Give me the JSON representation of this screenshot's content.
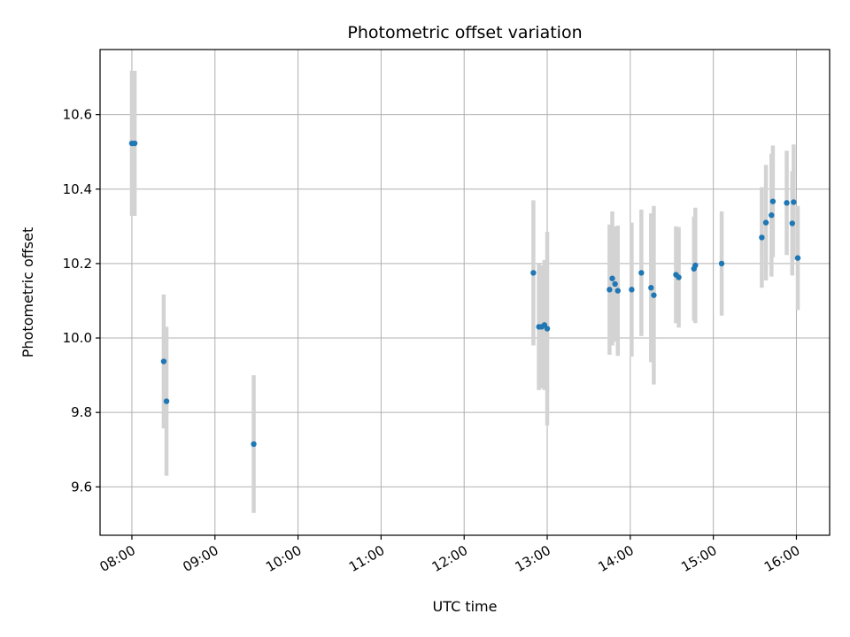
{
  "chart_data": {
    "type": "scatter",
    "title": "Photometric offset variation",
    "xlabel": "UTC time",
    "ylabel": "Photometric offset",
    "grid": true,
    "xlim": [
      "07:37",
      "16:24"
    ],
    "ylim": [
      9.47,
      10.775
    ],
    "x_ticks": [
      "08:00",
      "09:00",
      "10:00",
      "11:00",
      "12:00",
      "13:00",
      "14:00",
      "15:00",
      "16:00"
    ],
    "y_ticks": [
      9.6,
      9.8,
      10.0,
      10.2,
      10.4,
      10.6
    ],
    "colors": {
      "points": "#1f77b4",
      "errorbars": "#d3d3d3",
      "grid": "#b0b0b0"
    },
    "points": [
      {
        "x": "08:00",
        "y": 10.523,
        "err": 0.195
      },
      {
        "x": "08:02",
        "y": 10.523,
        "err": 0.195
      },
      {
        "x": "08:23",
        "y": 9.937,
        "err": 0.18
      },
      {
        "x": "08:25",
        "y": 9.83,
        "err": 0.2
      },
      {
        "x": "09:28",
        "y": 9.715,
        "err": 0.185
      },
      {
        "x": "12:50",
        "y": 10.175,
        "err": 0.195
      },
      {
        "x": "12:54",
        "y": 10.03,
        "err": 0.17
      },
      {
        "x": "12:56",
        "y": 10.03,
        "err": 0.165
      },
      {
        "x": "12:58",
        "y": 10.035,
        "err": 0.175
      },
      {
        "x": "13:00",
        "y": 10.025,
        "err": 0.26
      },
      {
        "x": "13:45",
        "y": 10.13,
        "err": 0.175
      },
      {
        "x": "13:47",
        "y": 10.16,
        "err": 0.18
      },
      {
        "x": "13:49",
        "y": 10.145,
        "err": 0.155
      },
      {
        "x": "13:51",
        "y": 10.127,
        "err": 0.175
      },
      {
        "x": "14:01",
        "y": 10.13,
        "err": 0.18
      },
      {
        "x": "14:08",
        "y": 10.175,
        "err": 0.17
      },
      {
        "x": "14:15",
        "y": 10.135,
        "err": 0.2
      },
      {
        "x": "14:17",
        "y": 10.115,
        "err": 0.24
      },
      {
        "x": "14:33",
        "y": 10.17,
        "err": 0.13
      },
      {
        "x": "14:35",
        "y": 10.163,
        "err": 0.135
      },
      {
        "x": "14:46",
        "y": 10.186,
        "err": 0.14
      },
      {
        "x": "14:47",
        "y": 10.195,
        "err": 0.155
      },
      {
        "x": "15:06",
        "y": 10.2,
        "err": 0.14
      },
      {
        "x": "15:35",
        "y": 10.27,
        "err": 0.135
      },
      {
        "x": "15:38",
        "y": 10.31,
        "err": 0.155
      },
      {
        "x": "15:42",
        "y": 10.33,
        "err": 0.165
      },
      {
        "x": "15:43",
        "y": 10.367,
        "err": 0.15
      },
      {
        "x": "15:53",
        "y": 10.363,
        "err": 0.14
      },
      {
        "x": "15:57",
        "y": 10.308,
        "err": 0.14
      },
      {
        "x": "15:58",
        "y": 10.365,
        "err": 0.155
      },
      {
        "x": "16:01",
        "y": 10.215,
        "err": 0.14
      }
    ]
  }
}
